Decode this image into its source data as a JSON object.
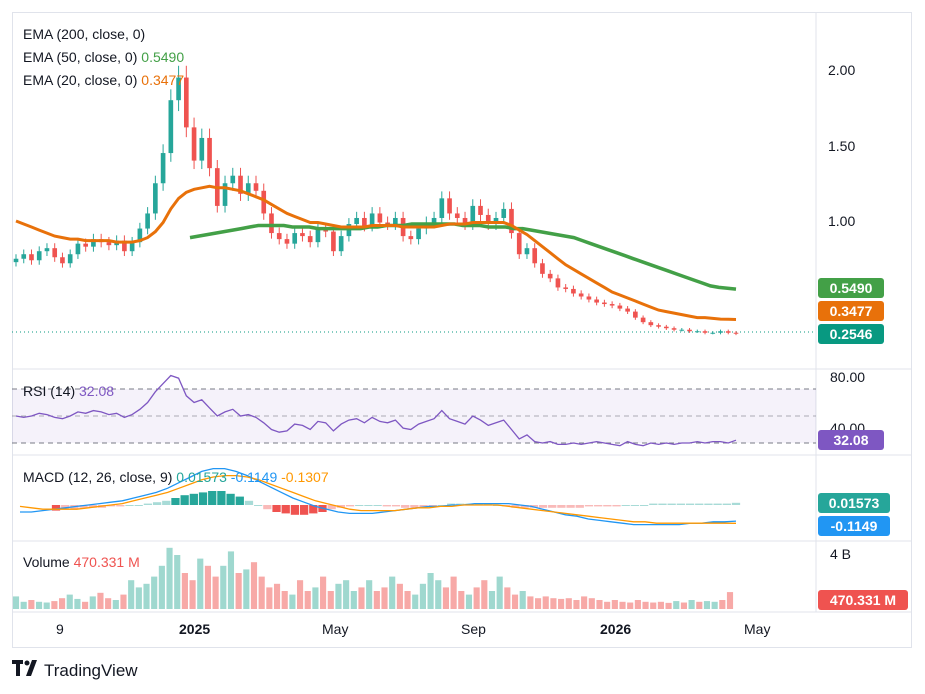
{
  "brand": {
    "name": "TradingView",
    "logo_icon": "tv-logo-icon"
  },
  "legend": {
    "ema200_label": "EMA (200, close, 0)",
    "ema50_label": "EMA (50, close, 0)",
    "ema50_value": "0.5490",
    "ema20_label": "EMA (20, close, 0)",
    "ema20_value": "0.3477"
  },
  "price_axis": [
    "2.00",
    "1.50",
    "1.00"
  ],
  "price_tags": {
    "ema50": "0.5490",
    "ema20": "0.3477",
    "last": "0.2546"
  },
  "rsi": {
    "label": "RSI (14)",
    "value": "32.08",
    "axis_top": "80.00",
    "axis_mid": "40.00",
    "tag": "32.08"
  },
  "macd": {
    "label": "MACD (12, 26, close, 9)",
    "hist": "0.01573",
    "macd": "-0.1149",
    "signal": "-0.1307",
    "tag_hist": "0.01573",
    "tag_macd": "-0.1149"
  },
  "volume": {
    "label": "Volume",
    "value": "470.331 M",
    "axis_top": "4 B",
    "tag": "470.331 M"
  },
  "time_axis": [
    "9",
    "2025",
    "May",
    "Sep",
    "2026",
    "May"
  ],
  "colors": {
    "up": "#26a69a",
    "down": "#ef5350",
    "ema50": "#43a047",
    "ema20": "#e8710a",
    "rsi": "#7e57c2",
    "macd": "#2196f3",
    "signal": "#ff9800",
    "last": "#089981"
  },
  "chart_data": {
    "type": "candlestick",
    "close": [
      0.75,
      0.78,
      0.74,
      0.8,
      0.82,
      0.76,
      0.72,
      0.78,
      0.85,
      0.83,
      0.88,
      0.86,
      0.84,
      0.87,
      0.8,
      0.86,
      0.95,
      1.05,
      1.25,
      1.45,
      1.8,
      1.95,
      1.62,
      1.4,
      1.55,
      1.35,
      1.1,
      1.25,
      1.3,
      1.18,
      1.25,
      1.2,
      1.05,
      0.92,
      0.88,
      0.85,
      0.92,
      0.9,
      0.86,
      0.95,
      0.93,
      0.8,
      0.9,
      0.98,
      1.02,
      0.97,
      1.05,
      0.99,
      0.98,
      1.02,
      0.9,
      0.88,
      0.95,
      0.99,
      1.02,
      1.15,
      1.05,
      1.02,
      0.98,
      1.1,
      1.04,
      0.98,
      1.02,
      1.08,
      0.92,
      0.78,
      0.82,
      0.72,
      0.65,
      0.62,
      0.56,
      0.55,
      0.52,
      0.5,
      0.48,
      0.46,
      0.45,
      0.44,
      0.42,
      0.4,
      0.36,
      0.33,
      0.31,
      0.3,
      0.29,
      0.28,
      0.28,
      0.27,
      0.27,
      0.26,
      0.26,
      0.27,
      0.26,
      0.2546
    ],
    "ema20": [
      1.0,
      0.98,
      0.96,
      0.94,
      0.92,
      0.9,
      0.89,
      0.88,
      0.88,
      0.87,
      0.87,
      0.87,
      0.87,
      0.86,
      0.86,
      0.86,
      0.87,
      0.89,
      0.93,
      0.99,
      1.08,
      1.15,
      1.19,
      1.21,
      1.22,
      1.23,
      1.22,
      1.22,
      1.21,
      1.2,
      1.18,
      1.16,
      1.14,
      1.11,
      1.08,
      1.05,
      1.03,
      1.01,
      0.99,
      0.99,
      0.98,
      0.97,
      0.96,
      0.96,
      0.96,
      0.96,
      0.97,
      0.97,
      0.97,
      0.97,
      0.96,
      0.96,
      0.96,
      0.96,
      0.96,
      0.97,
      0.98,
      0.98,
      0.98,
      0.99,
      0.99,
      0.99,
      0.99,
      0.99,
      0.97,
      0.94,
      0.91,
      0.87,
      0.83,
      0.79,
      0.75,
      0.71,
      0.68,
      0.65,
      0.62,
      0.59,
      0.56,
      0.53,
      0.51,
      0.49,
      0.47,
      0.45,
      0.43,
      0.41,
      0.4,
      0.39,
      0.38,
      0.37,
      0.36,
      0.36,
      0.355,
      0.35,
      0.349,
      0.3477
    ],
    "ema50": [
      0.89,
      0.9,
      0.91,
      0.92,
      0.93,
      0.94,
      0.95,
      0.96,
      0.97,
      0.97,
      0.97,
      0.97,
      0.96,
      0.96,
      0.96,
      0.95,
      0.95,
      0.95,
      0.95,
      0.95,
      0.95,
      0.96,
      0.96,
      0.97,
      0.97,
      0.97,
      0.98,
      0.98,
      0.98,
      0.98,
      0.98,
      0.98,
      0.97,
      0.97,
      0.97,
      0.96,
      0.96,
      0.96,
      0.95,
      0.95,
      0.94,
      0.93,
      0.92,
      0.91,
      0.9,
      0.89,
      0.87,
      0.85,
      0.83,
      0.81,
      0.79,
      0.77,
      0.75,
      0.73,
      0.71,
      0.69,
      0.67,
      0.65,
      0.63,
      0.61,
      0.59,
      0.57,
      0.56,
      0.555,
      0.549
    ],
    "ema50_start_index": 29,
    "rsi_line": [
      50,
      49,
      50,
      52,
      51,
      49,
      48,
      50,
      53,
      52,
      54,
      53,
      51,
      52,
      49,
      51,
      55,
      60,
      68,
      74,
      80,
      78,
      65,
      60,
      62,
      56,
      50,
      53,
      55,
      50,
      51,
      49,
      45,
      40,
      38,
      39,
      44,
      43,
      40,
      46,
      45,
      39,
      44,
      47,
      48,
      45,
      49,
      46,
      45,
      47,
      41,
      40,
      44,
      46,
      48,
      54,
      48,
      46,
      44,
      50,
      47,
      43,
      45,
      47,
      40,
      33,
      36,
      31,
      30,
      31,
      29,
      29,
      30,
      29,
      30,
      31,
      30,
      29,
      28,
      31,
      29,
      28,
      30,
      29,
      30,
      29,
      30,
      30,
      31,
      30,
      31,
      31,
      30,
      32.08
    ],
    "rsi_levels": [
      70,
      50,
      30
    ],
    "macd_hist": [
      -0.04,
      -0.03,
      -0.03,
      -0.02,
      -0.02,
      -0.02,
      -0.01,
      -0.01,
      0.0,
      0.0,
      0.01,
      0.02,
      0.03,
      0.05,
      0.07,
      0.08,
      0.09,
      0.1,
      0.1,
      0.08,
      0.06,
      0.03,
      0.0,
      -0.03,
      -0.05,
      -0.06,
      -0.07,
      -0.07,
      -0.06,
      -0.05,
      -0.03,
      -0.02,
      -0.01,
      0.0,
      0.0,
      0.0,
      -0.01,
      -0.01,
      -0.02,
      -0.02,
      -0.02,
      -0.01,
      0.0,
      0.01,
      0.01,
      0.01,
      0.01,
      0.01,
      0.0,
      -0.01,
      -0.02,
      -0.02,
      -0.02,
      -0.02,
      -0.02,
      -0.02,
      -0.02,
      -0.02,
      -0.01,
      -0.01,
      -0.01,
      -0.01,
      0.0,
      0.0,
      0.0,
      0.01,
      0.01,
      0.01,
      0.01,
      0.01,
      0.01,
      0.01,
      0.01,
      0.01,
      0.01573
    ],
    "macd_line": [
      -0.05,
      -0.05,
      -0.04,
      -0.03,
      -0.02,
      -0.01,
      0.0,
      0.01,
      0.02,
      0.03,
      0.05,
      0.07,
      0.09,
      0.12,
      0.16,
      0.2,
      0.24,
      0.26,
      0.26,
      0.24,
      0.21,
      0.17,
      0.13,
      0.09,
      0.05,
      0.02,
      -0.01,
      -0.03,
      -0.05,
      -0.06,
      -0.06,
      -0.06,
      -0.05,
      -0.04,
      -0.03,
      -0.02,
      -0.01,
      -0.01,
      0.0,
      0.0,
      0.01,
      0.01,
      0.01,
      0.01,
      0.0,
      -0.01,
      -0.03,
      -0.05,
      -0.07,
      -0.08,
      -0.1,
      -0.11,
      -0.12,
      -0.13,
      -0.14,
      -0.14,
      -0.14,
      -0.14,
      -0.14,
      -0.13,
      -0.13,
      -0.12,
      -0.12,
      -0.1149
    ],
    "signal_line": [
      -0.01,
      -0.02,
      -0.03,
      -0.03,
      -0.03,
      -0.03,
      -0.02,
      -0.01,
      0.0,
      0.01,
      0.03,
      0.05,
      0.07,
      0.09,
      0.12,
      0.15,
      0.18,
      0.2,
      0.21,
      0.21,
      0.2,
      0.18,
      0.15,
      0.12,
      0.09,
      0.06,
      0.03,
      0.01,
      -0.01,
      -0.03,
      -0.04,
      -0.04,
      -0.04,
      -0.04,
      -0.03,
      -0.02,
      -0.02,
      -0.01,
      -0.01,
      0.0,
      0.0,
      0.0,
      0.0,
      -0.01,
      -0.02,
      -0.03,
      -0.04,
      -0.05,
      -0.06,
      -0.07,
      -0.08,
      -0.09,
      -0.1,
      -0.11,
      -0.12,
      -0.12,
      -0.13,
      -0.13,
      -0.13,
      -0.13,
      -0.13,
      -0.13,
      -0.13,
      -0.1307
    ],
    "volume": [
      0.35,
      0.2,
      0.25,
      0.2,
      0.18,
      0.22,
      0.3,
      0.4,
      0.28,
      0.2,
      0.35,
      0.45,
      0.3,
      0.25,
      0.4,
      0.8,
      0.6,
      0.7,
      0.9,
      1.2,
      1.7,
      1.5,
      1.0,
      0.8,
      1.4,
      1.2,
      0.9,
      1.2,
      1.6,
      1.0,
      1.1,
      1.3,
      0.9,
      0.6,
      0.7,
      0.5,
      0.4,
      0.8,
      0.5,
      0.6,
      0.9,
      0.5,
      0.7,
      0.8,
      0.5,
      0.6,
      0.8,
      0.5,
      0.6,
      0.9,
      0.7,
      0.5,
      0.4,
      0.7,
      1.0,
      0.8,
      0.6,
      0.9,
      0.5,
      0.4,
      0.6,
      0.8,
      0.5,
      0.9,
      0.6,
      0.4,
      0.5,
      0.35,
      0.3,
      0.35,
      0.3,
      0.28,
      0.3,
      0.25,
      0.35,
      0.3,
      0.25,
      0.2,
      0.25,
      0.2,
      0.18,
      0.25,
      0.2,
      0.18,
      0.2,
      0.17,
      0.22,
      0.18,
      0.25,
      0.2,
      0.22,
      0.2,
      0.25,
      0.47
    ]
  }
}
